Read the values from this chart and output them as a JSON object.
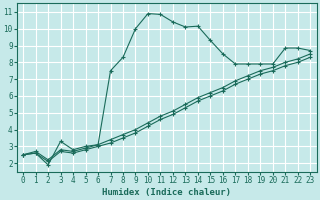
{
  "xlabel": "Humidex (Indice chaleur)",
  "ylabel": "",
  "background_color": "#c6e9e9",
  "grid_color": "#ffffff",
  "line_color": "#1a6b5a",
  "xlim": [
    -0.5,
    23.5
  ],
  "ylim": [
    1.5,
    11.5
  ],
  "xticks": [
    0,
    1,
    2,
    3,
    4,
    5,
    6,
    7,
    8,
    9,
    10,
    11,
    12,
    13,
    14,
    15,
    16,
    17,
    18,
    19,
    20,
    21,
    22,
    23
  ],
  "yticks": [
    2,
    3,
    4,
    5,
    6,
    7,
    8,
    9,
    10,
    11
  ],
  "series": [
    {
      "x": [
        0,
        1,
        2,
        3,
        4,
        5,
        6,
        7,
        8,
        9,
        10,
        11,
        12,
        13,
        14,
        15,
        16,
        17,
        18,
        19,
        20,
        21,
        22,
        23
      ],
      "y": [
        2.5,
        2.6,
        1.9,
        3.3,
        2.8,
        3.0,
        3.1,
        7.5,
        8.3,
        10.0,
        10.9,
        10.85,
        10.4,
        10.1,
        10.15,
        9.3,
        8.5,
        7.9,
        7.9,
        7.9,
        7.9,
        8.85,
        8.85,
        8.7
      ]
    },
    {
      "x": [
        0,
        1,
        2,
        3,
        4,
        5,
        6,
        7,
        8,
        9,
        10,
        11,
        12,
        13,
        14,
        15,
        16,
        17,
        18,
        19,
        20,
        21,
        22,
        23
      ],
      "y": [
        2.5,
        2.7,
        2.2,
        2.8,
        2.7,
        2.9,
        3.1,
        3.4,
        3.7,
        4.0,
        4.4,
        4.8,
        5.1,
        5.5,
        5.9,
        6.2,
        6.5,
        6.9,
        7.2,
        7.5,
        7.7,
        8.0,
        8.2,
        8.5
      ]
    },
    {
      "x": [
        0,
        1,
        2,
        3,
        4,
        5,
        6,
        7,
        8,
        9,
        10,
        11,
        12,
        13,
        14,
        15,
        16,
        17,
        18,
        19,
        20,
        21,
        22,
        23
      ],
      "y": [
        2.5,
        2.6,
        2.1,
        2.7,
        2.6,
        2.8,
        3.0,
        3.2,
        3.5,
        3.8,
        4.2,
        4.6,
        4.9,
        5.3,
        5.7,
        6.0,
        6.3,
        6.7,
        7.0,
        7.3,
        7.5,
        7.8,
        8.0,
        8.3
      ]
    }
  ]
}
